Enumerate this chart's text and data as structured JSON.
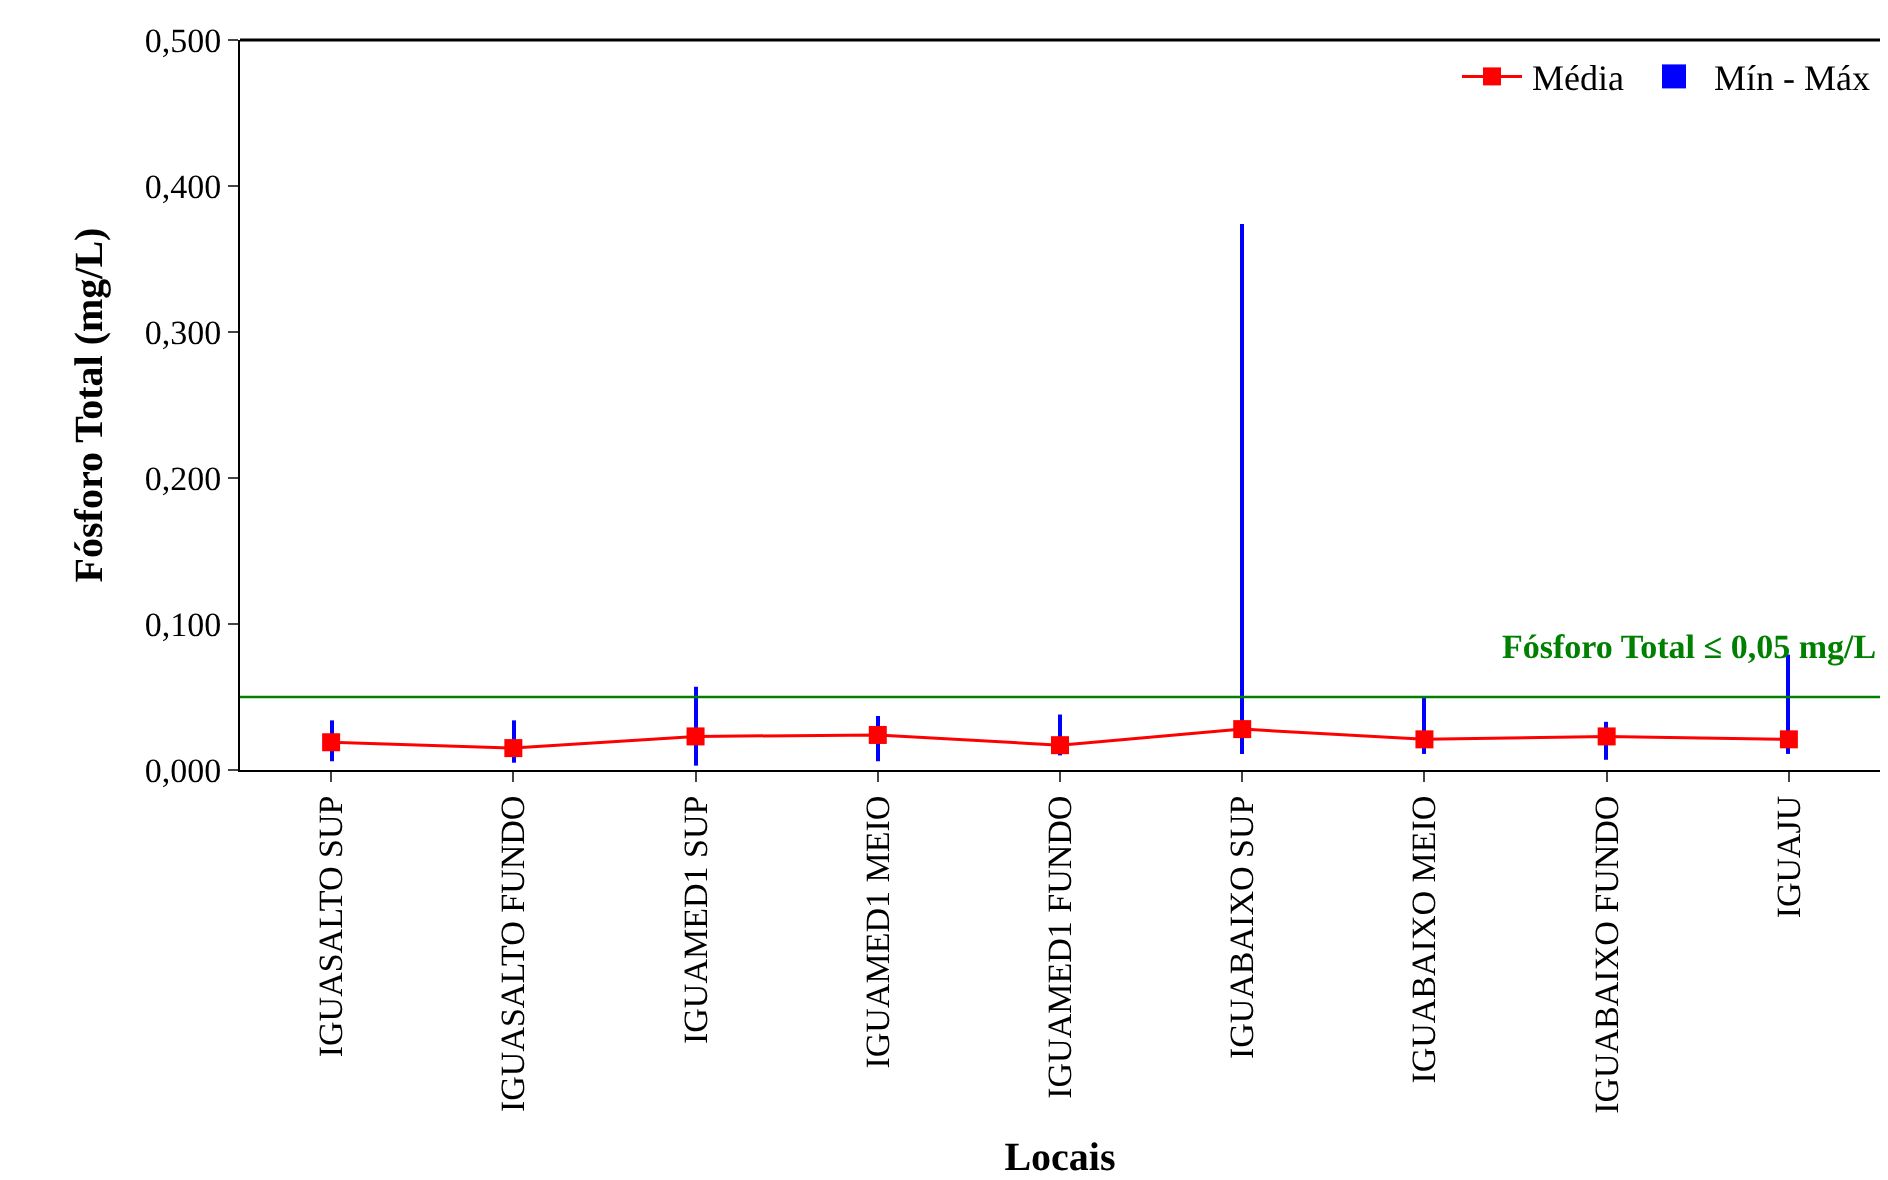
{
  "chart_data": {
    "type": "line",
    "xlabel": "Locais",
    "ylabel": "Fósforo Total (mg/L)",
    "categories": [
      "IGUASALTO SUP",
      "IGUASALTO FUNDO",
      "IGUAMED1 SUP",
      "IGUAMED1 MEIO",
      "IGUAMED1 FUNDO",
      "IGUABAIXO SUP",
      "IGUABAIXO MEIO",
      "IGUABAIXO FUNDO",
      "IGUAJU"
    ],
    "series": [
      {
        "name": "Média",
        "color": "#ff0000",
        "marker": "square",
        "values": [
          0.019,
          0.015,
          0.023,
          0.024,
          0.017,
          0.028,
          0.021,
          0.023,
          0.021
        ]
      },
      {
        "name": "Mín - Máx",
        "color": "#0000ff",
        "type": "bar",
        "base": [
          0.006,
          0.005,
          0.003,
          0.006,
          0.01,
          0.011,
          0.011,
          0.007,
          0.011
        ],
        "values": [
          0.028,
          0.029,
          0.054,
          0.031,
          0.028,
          0.363,
          0.039,
          0.026,
          0.068
        ]
      }
    ],
    "ylim": [
      0,
      0.5
    ],
    "yticks": [
      {
        "value": 0,
        "label": "0,000"
      },
      {
        "value": 0.1,
        "label": "0,100"
      },
      {
        "value": 0.2,
        "label": "0,200"
      },
      {
        "value": 0.3,
        "label": "0,300"
      },
      {
        "value": 0.4,
        "label": "0,400"
      },
      {
        "value": 0.5,
        "label": "0,500"
      }
    ],
    "ref_lines": [
      {
        "axis": "y",
        "value": 0.05,
        "label": "Fósforo Total ≤ 0,05 mg/L",
        "color": "#008000"
      }
    ],
    "legend": "top right"
  }
}
